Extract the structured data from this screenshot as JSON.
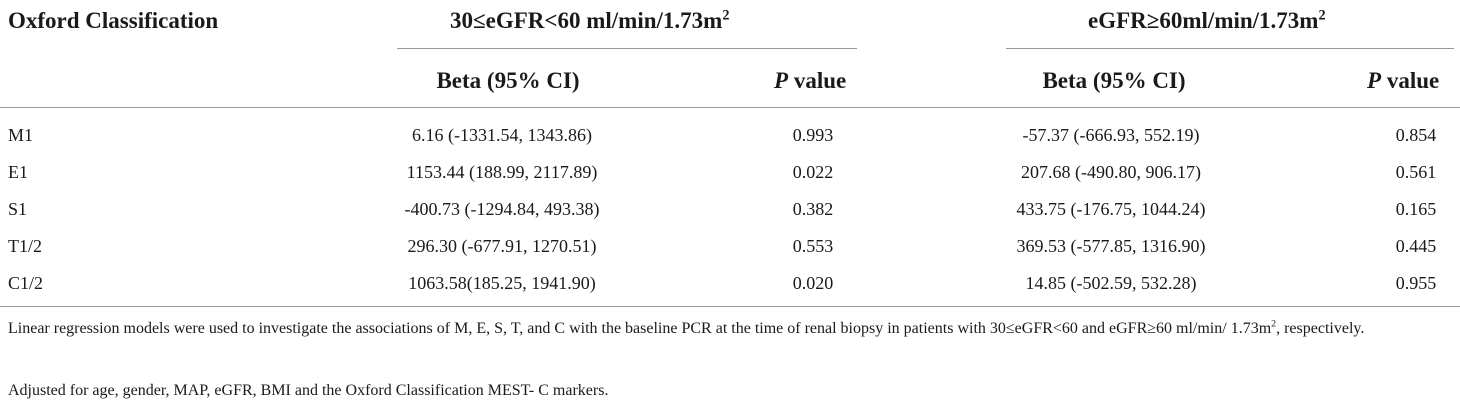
{
  "table": {
    "header": {
      "col0": "Oxford Classification",
      "group1_main": "30≤eGFR<60 ml/min/1.73m",
      "group1_sup": "2",
      "group2_main": "eGFR≥60ml/min/1.73m",
      "group2_sup": "2"
    },
    "subheader": {
      "beta": "Beta (95% CI)",
      "p_italic": "P",
      "p_rest": " value"
    },
    "rows": [
      {
        "label": "M1",
        "beta1": "6.16 (-1331.54, 1343.86)",
        "p1": "0.993",
        "beta2": "-57.37 (-666.93, 552.19)",
        "p2": "0.854"
      },
      {
        "label": "E1",
        "beta1": "1153.44 (188.99, 2117.89)",
        "p1": "0.022",
        "beta2": "207.68 (-490.80, 906.17)",
        "p2": "0.561"
      },
      {
        "label": "S1",
        "beta1": "-400.73 (-1294.84, 493.38)",
        "p1": "0.382",
        "beta2": "433.75 (-176.75, 1044.24)",
        "p2": "0.165"
      },
      {
        "label": "T1/2",
        "beta1": "296.30 (-677.91, 1270.51)",
        "p1": "0.553",
        "beta2": "369.53 (-577.85, 1316.90)",
        "p2": "0.445"
      },
      {
        "label": "C1/2",
        "beta1": "1063.58(185.25, 1941.90)",
        "p1": "0.020",
        "beta2": "14.85 (-502.59, 532.28)",
        "p2": "0.955"
      }
    ]
  },
  "footnotes": {
    "line1_main": "Linear regression models were used to investigate the associations of M, E, S, T, and C with the baseline PCR at the time of renal biopsy in patients with 30≤eGFR<60 and eGFR≥60 ml/min/ 1.73m",
    "line1_sup": "2",
    "line1_tail": ", respectively.",
    "line2": "Adjusted for age, gender, MAP, eGFR, BMI and the Oxford Classification MEST- C markers."
  },
  "colors": {
    "text": "#1a1a1a",
    "rule": "#9a9a9a"
  }
}
